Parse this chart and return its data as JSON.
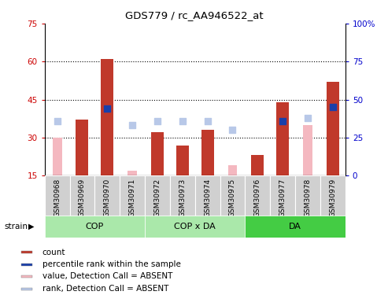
{
  "title": "GDS779 / rc_AA946522_at",
  "samples": [
    "GSM30968",
    "GSM30969",
    "GSM30970",
    "GSM30971",
    "GSM30972",
    "GSM30973",
    "GSM30974",
    "GSM30975",
    "GSM30976",
    "GSM30977",
    "GSM30978",
    "GSM30979"
  ],
  "count_values": [
    0,
    37,
    61,
    0,
    32,
    27,
    33,
    0,
    23,
    44,
    0,
    52
  ],
  "rank_values": [
    0,
    0,
    44,
    0,
    0,
    0,
    0,
    0,
    0,
    36,
    0,
    45
  ],
  "absent_value": [
    30,
    0,
    0,
    17,
    0,
    0,
    0,
    19,
    0,
    0,
    35,
    0
  ],
  "absent_rank": [
    36,
    0,
    0,
    33,
    36,
    36,
    36,
    30,
    0,
    0,
    38,
    0
  ],
  "count_color": "#c0392b",
  "rank_color": "#1a3faa",
  "absent_value_color": "#f4b8c0",
  "absent_rank_color": "#b8c8e8",
  "ylim_left": [
    15,
    75
  ],
  "ylim_right": [
    0,
    100
  ],
  "yticks_left": [
    15,
    30,
    45,
    60,
    75
  ],
  "yticks_right": [
    0,
    25,
    50,
    75,
    100
  ],
  "ylabel_left_color": "#cc0000",
  "ylabel_right_color": "#0000cc",
  "bar_width": 0.5,
  "dot_size": 30,
  "background_color": "#ffffff",
  "plot_bg_color": "#ffffff",
  "tick_label_bg": "#d0d0d0",
  "group_cop_color": "#aae8aa",
  "group_da_color": "#44cc44",
  "legend_items": [
    {
      "color": "#c0392b",
      "label": "count"
    },
    {
      "color": "#1a3faa",
      "label": "percentile rank within the sample"
    },
    {
      "color": "#f4b8c0",
      "label": "value, Detection Call = ABSENT"
    },
    {
      "color": "#b8c8e8",
      "label": "rank, Detection Call = ABSENT"
    }
  ]
}
